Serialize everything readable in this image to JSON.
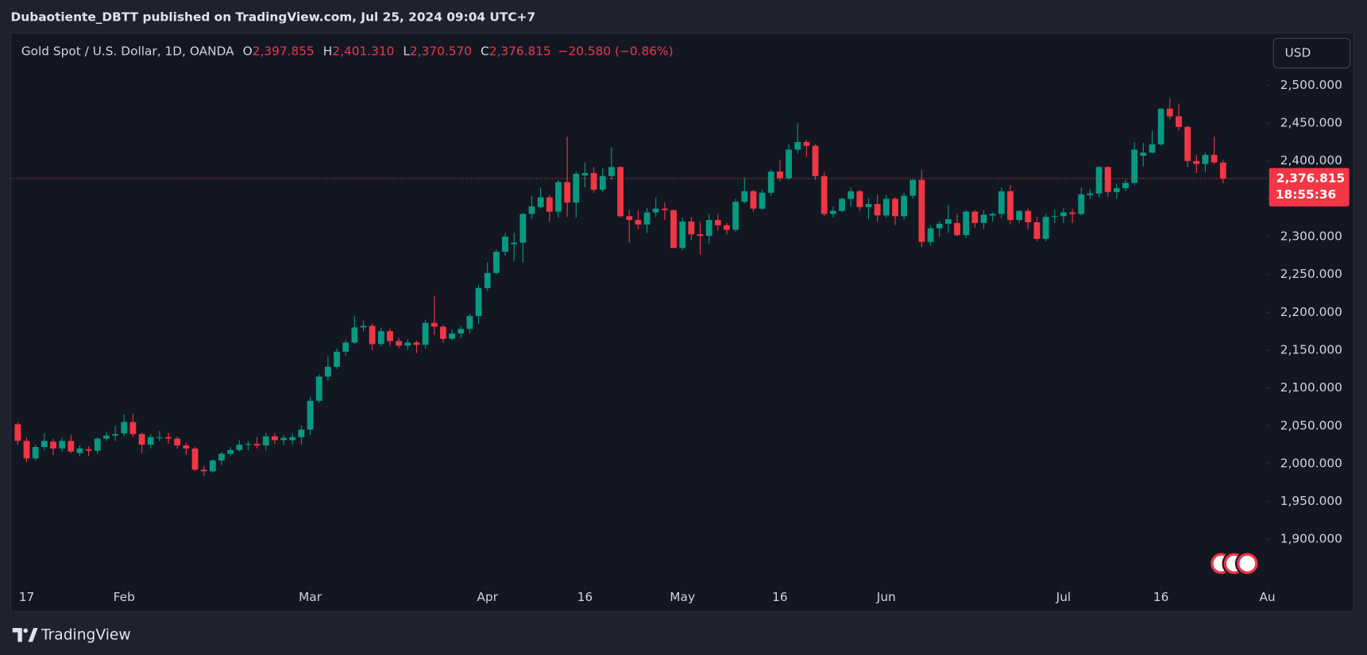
{
  "header": {
    "publisher": "Dubaotiente_DBTT published on TradingView.com, Jul 25, 2024 09:04 UTC+7",
    "symbol": "Gold Spot / U.S. Dollar, 1D, OANDA",
    "ohlc": [
      {
        "key": "O",
        "value": "2,397.855"
      },
      {
        "key": "H",
        "value": "2,401.310"
      },
      {
        "key": "L",
        "value": "2,370.570"
      },
      {
        "key": "C",
        "value": "2,376.815"
      }
    ],
    "change": "−20.580 (−0.86%)"
  },
  "currency": "USD",
  "countdown": "18:55:36",
  "brand": "TradingView",
  "chart_data": {
    "type": "candlestick",
    "up_color": "#089981",
    "down_color": "#f23645",
    "grid": false,
    "open": [
      2052,
      2030,
      2007,
      2022,
      2029,
      2020,
      2030,
      2014,
      2019,
      2017,
      2033,
      2037,
      2040,
      2055,
      2039,
      2025,
      2034,
      2035,
      2033,
      2024,
      2020,
      1992,
      1990,
      2004,
      2013,
      2018,
      2025,
      2026,
      2024,
      2036,
      2031,
      2031,
      2035,
      2045,
      2083,
      2115,
      2128,
      2148,
      2160,
      2180,
      2182,
      2158,
      2175,
      2162,
      2156,
      2160,
      2157,
      2186,
      2181,
      2165,
      2172,
      2178,
      2195,
      2232,
      2252,
      2280,
      2290,
      2292,
      2330,
      2339,
      2352,
      2333,
      2372,
      2345,
      2381,
      2384,
      2362,
      2380,
      2392,
      2327,
      2322,
      2316,
      2332,
      2337,
      2335,
      2285,
      2320,
      2303,
      2301,
      2322,
      2315,
      2309,
      2346,
      2360,
      2337,
      2358,
      2386,
      2377,
      2415,
      2425,
      2420,
      2380,
      2330,
      2334,
      2350,
      2360,
      2339,
      2343,
      2328,
      2350,
      2327,
      2354,
      2375,
      2293,
      2311,
      2317,
      2318,
      2302,
      2333,
      2318,
      2328,
      2330,
      2360,
      2322,
      2334,
      2319,
      2297,
      2326,
      2327,
      2332,
      2330,
      2355,
      2357,
      2392,
      2359,
      2364,
      2371,
      2407,
      2411,
      2422,
      2469,
      2459,
      2445,
      2400,
      2396,
      2408,
      2397.855
    ],
    "high": [
      2055,
      2035,
      2025,
      2040,
      2033,
      2034,
      2038,
      2024,
      2023,
      2035,
      2042,
      2050,
      2065,
      2066,
      2041,
      2039,
      2043,
      2041,
      2036,
      2028,
      2022,
      1997,
      2006,
      2015,
      2022,
      2031,
      2030,
      2035,
      2041,
      2040,
      2038,
      2040,
      2050,
      2088,
      2118,
      2142,
      2152,
      2164,
      2195,
      2189,
      2185,
      2180,
      2178,
      2166,
      2164,
      2163,
      2190,
      2222,
      2183,
      2177,
      2182,
      2198,
      2236,
      2266,
      2283,
      2305,
      2305,
      2331,
      2354,
      2365,
      2355,
      2375,
      2432,
      2386,
      2398,
      2392,
      2390,
      2418,
      2393,
      2335,
      2335,
      2338,
      2352,
      2345,
      2336,
      2325,
      2326,
      2320,
      2330,
      2330,
      2318,
      2350,
      2378,
      2362,
      2362,
      2389,
      2401,
      2422,
      2450,
      2428,
      2422,
      2385,
      2340,
      2352,
      2365,
      2362,
      2351,
      2355,
      2355,
      2352,
      2358,
      2377,
      2388,
      2315,
      2320,
      2342,
      2330,
      2335,
      2335,
      2335,
      2332,
      2365,
      2368,
      2335,
      2337,
      2326,
      2330,
      2336,
      2338,
      2337,
      2365,
      2363,
      2393,
      2393,
      2370,
      2375,
      2425,
      2424,
      2440,
      2470,
      2483,
      2476,
      2447,
      2408,
      2411,
      2432,
      2401.31
    ],
    "low": [
      2025,
      2002,
      2004,
      2018,
      2011,
      2016,
      2014,
      2010,
      2010,
      2013,
      2030,
      2030,
      2036,
      2035,
      2014,
      2020,
      2030,
      2026,
      2020,
      2012,
      1990,
      1984,
      1988,
      1998,
      2010,
      2016,
      2018,
      2020,
      2017,
      2026,
      2024,
      2025,
      2025,
      2038,
      2080,
      2110,
      2125,
      2143,
      2158,
      2175,
      2150,
      2155,
      2155,
      2152,
      2150,
      2146,
      2152,
      2170,
      2160,
      2163,
      2166,
      2172,
      2185,
      2228,
      2250,
      2275,
      2268,
      2266,
      2323,
      2337,
      2320,
      2325,
      2326,
      2325,
      2365,
      2358,
      2359,
      2375,
      2325,
      2292,
      2310,
      2305,
      2326,
      2322,
      2285,
      2282,
      2295,
      2277,
      2291,
      2308,
      2303,
      2306,
      2344,
      2333,
      2335,
      2354,
      2373,
      2375,
      2410,
      2405,
      2375,
      2327,
      2325,
      2332,
      2340,
      2334,
      2323,
      2320,
      2325,
      2315,
      2322,
      2350,
      2286,
      2288,
      2300,
      2305,
      2300,
      2298,
      2312,
      2310,
      2320,
      2325,
      2316,
      2318,
      2310,
      2294,
      2294,
      2318,
      2318,
      2318,
      2328,
      2350,
      2352,
      2353,
      2350,
      2360,
      2368,
      2393,
      2410,
      2420,
      2455,
      2440,
      2392,
      2384,
      2385,
      2396,
      2370.57
    ],
    "close": [
      2030,
      2007,
      2022,
      2030,
      2020,
      2030,
      2016,
      2020,
      2017,
      2033,
      2037,
      2039,
      2055,
      2039,
      2025,
      2035,
      2035,
      2033,
      2024,
      2020,
      1992,
      1990,
      2004,
      2013,
      2018,
      2025,
      2026,
      2024,
      2036,
      2031,
      2034,
      2035,
      2045,
      2083,
      2115,
      2128,
      2148,
      2160,
      2180,
      2182,
      2158,
      2175,
      2162,
      2156,
      2160,
      2157,
      2186,
      2181,
      2165,
      2172,
      2178,
      2195,
      2232,
      2252,
      2280,
      2300,
      2292,
      2330,
      2340,
      2352,
      2333,
      2372,
      2345,
      2383,
      2384,
      2362,
      2380,
      2392,
      2327,
      2322,
      2316,
      2332,
      2337,
      2335,
      2285,
      2320,
      2303,
      2301,
      2322,
      2315,
      2309,
      2346,
      2360,
      2337,
      2358,
      2386,
      2377,
      2415,
      2425,
      2420,
      2380,
      2330,
      2334,
      2350,
      2360,
      2339,
      2343,
      2328,
      2350,
      2327,
      2354,
      2375,
      2293,
      2311,
      2317,
      2323,
      2302,
      2333,
      2318,
      2329,
      2330,
      2360,
      2322,
      2334,
      2319,
      2297,
      2326,
      2327,
      2332,
      2330,
      2356,
      2357,
      2392,
      2359,
      2364,
      2371,
      2415,
      2411,
      2422,
      2469,
      2459,
      2445,
      2400,
      2396,
      2408,
      2398,
      2376.815
    ],
    "last_price": {
      "value": 2376.815,
      "label": "2,376.815"
    },
    "xlim": [
      -0.79,
      140.9
    ],
    "xticks": [
      {
        "value": 1,
        "label": "17"
      },
      {
        "value": 12,
        "label": "Feb"
      },
      {
        "value": 33,
        "label": "Mar"
      },
      {
        "value": 53,
        "label": "Apr"
      },
      {
        "value": 64,
        "label": "16"
      },
      {
        "value": 75,
        "label": "May"
      },
      {
        "value": 86,
        "label": "16"
      },
      {
        "value": 98,
        "label": "Jun"
      },
      {
        "value": 118,
        "label": "Jul"
      },
      {
        "value": 129,
        "label": "16"
      },
      {
        "value": 141,
        "label": "Au"
      }
    ],
    "ylim": [
      1838,
      2569
    ],
    "yticks": [
      {
        "value": 1900,
        "label": "1,900.000"
      },
      {
        "value": 1950,
        "label": "1,950.000"
      },
      {
        "value": 2000,
        "label": "2,000.000"
      },
      {
        "value": 2050,
        "label": "2,050.000"
      },
      {
        "value": 2100,
        "label": "2,100.000"
      },
      {
        "value": 2150,
        "label": "2,150.000"
      },
      {
        "value": 2200,
        "label": "2,200.000"
      },
      {
        "value": 2250,
        "label": "2,250.000"
      },
      {
        "value": 2300,
        "label": "2,300.000"
      },
      {
        "value": 2350,
        "label": "2,350.000"
      },
      {
        "value": 2400,
        "label": "2,400.000"
      },
      {
        "value": 2450,
        "label": "2,450.000"
      },
      {
        "value": 2500,
        "label": "2,500.000"
      }
    ]
  }
}
